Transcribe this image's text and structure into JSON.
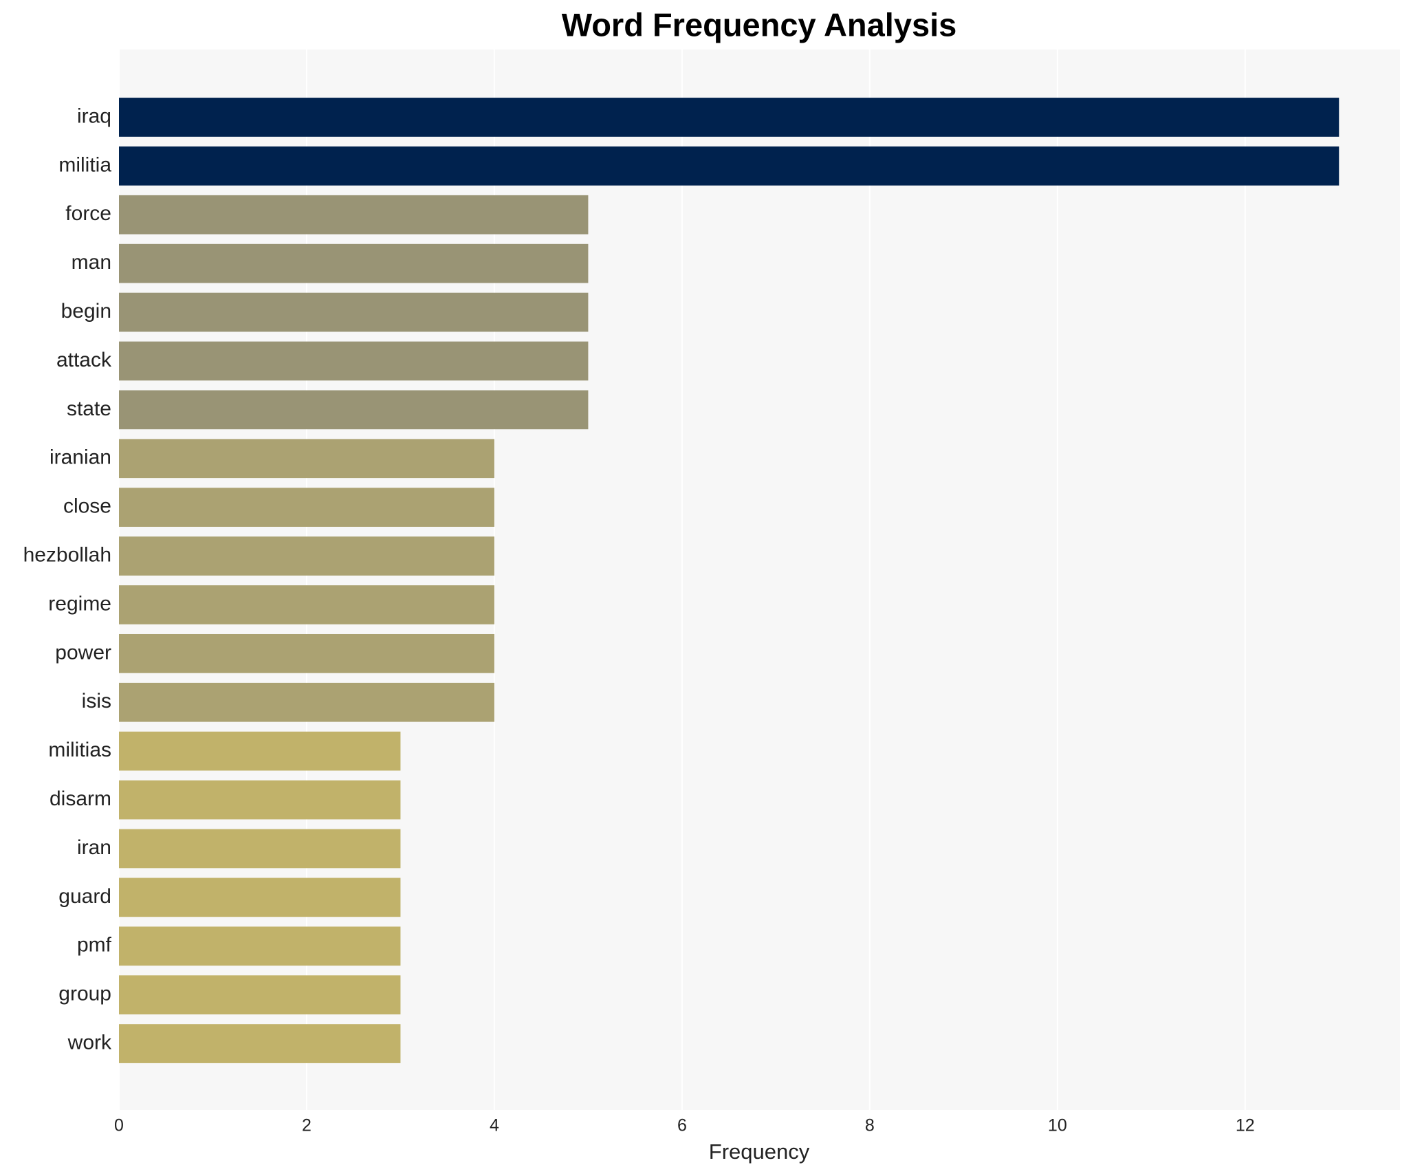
{
  "chart_data": {
    "type": "barh",
    "title": "Word Frequency Analysis",
    "x_label": "Frequency",
    "categories": [
      "iraq",
      "militia",
      "force",
      "man",
      "begin",
      "attack",
      "state",
      "iranian",
      "close",
      "hezbollah",
      "regime",
      "power",
      "isis",
      "militias",
      "disarm",
      "iran",
      "guard",
      "pmf",
      "group",
      "work"
    ],
    "values": [
      13,
      13,
      5,
      5,
      5,
      5,
      5,
      4,
      4,
      4,
      4,
      4,
      4,
      3,
      3,
      3,
      3,
      3,
      3,
      3
    ],
    "colors": [
      "#00224e",
      "#00224e",
      "#999475",
      "#999475",
      "#999475",
      "#999475",
      "#999475",
      "#aba272",
      "#aba272",
      "#aba272",
      "#aba272",
      "#aba272",
      "#aba272",
      "#c1b26a",
      "#c1b26a",
      "#c1b26a",
      "#c1b26a",
      "#c1b26a",
      "#c1b26a",
      "#c1b26a"
    ],
    "xlim": [
      0,
      13.65
    ],
    "xticks": [
      0,
      2,
      4,
      6,
      8,
      10,
      12
    ],
    "grid": true
  }
}
